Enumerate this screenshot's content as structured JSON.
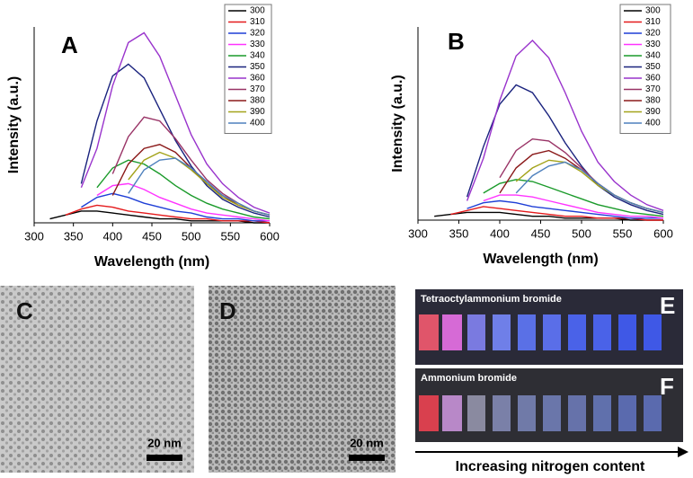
{
  "chart_data": [
    {
      "type": "line",
      "label": "A",
      "xlabel": "Wavelength (nm)",
      "ylabel": "Intensity (a.u.)",
      "x": [
        300,
        320,
        340,
        360,
        380,
        400,
        420,
        440,
        460,
        480,
        500,
        520,
        540,
        560,
        580,
        600
      ],
      "xlim": [
        300,
        600
      ],
      "xticks": [
        300,
        350,
        400,
        450,
        500,
        550,
        600
      ],
      "ylim": [
        0,
        100
      ],
      "series": [
        {
          "name": "300",
          "color": "#000000",
          "values": [
            null,
            2,
            4,
            6,
            6,
            5,
            4,
            3,
            2,
            2,
            1,
            1,
            1,
            1,
            0,
            0
          ]
        },
        {
          "name": "310",
          "color": "#e41a1c",
          "values": [
            null,
            null,
            4,
            7,
            9,
            8,
            6,
            5,
            4,
            3,
            2,
            2,
            1,
            1,
            1,
            0
          ]
        },
        {
          "name": "320",
          "color": "#1f3fd6",
          "values": [
            null,
            null,
            null,
            8,
            13,
            15,
            13,
            10,
            8,
            6,
            5,
            3,
            2,
            2,
            1,
            1
          ]
        },
        {
          "name": "330",
          "color": "#ff33ff",
          "values": [
            null,
            null,
            null,
            null,
            14,
            19,
            20,
            17,
            13,
            10,
            7,
            5,
            4,
            3,
            2,
            1
          ]
        },
        {
          "name": "340",
          "color": "#1a9a2a",
          "values": [
            null,
            null,
            null,
            null,
            18,
            28,
            32,
            30,
            25,
            19,
            14,
            10,
            7,
            5,
            3,
            2
          ]
        },
        {
          "name": "350",
          "color": "#1a237e",
          "values": [
            null,
            null,
            null,
            20,
            52,
            75,
            81,
            74,
            58,
            42,
            29,
            19,
            12,
            8,
            5,
            3
          ]
        },
        {
          "name": "360",
          "color": "#9933cc",
          "values": [
            null,
            null,
            null,
            18,
            38,
            70,
            92,
            97,
            85,
            65,
            45,
            30,
            20,
            13,
            8,
            5
          ]
        },
        {
          "name": "370",
          "color": "#993366",
          "values": [
            null,
            null,
            null,
            null,
            null,
            25,
            44,
            54,
            52,
            43,
            32,
            22,
            15,
            10,
            6,
            4
          ]
        },
        {
          "name": "380",
          "color": "#8b1a1a",
          "values": [
            null,
            null,
            null,
            null,
            null,
            14,
            30,
            38,
            40,
            36,
            28,
            20,
            14,
            9,
            6,
            4
          ]
        },
        {
          "name": "390",
          "color": "#a3a31a",
          "values": [
            null,
            null,
            null,
            null,
            null,
            null,
            22,
            32,
            36,
            33,
            27,
            20,
            13,
            9,
            6,
            4
          ]
        },
        {
          "name": "400",
          "color": "#4f81bd",
          "values": [
            null,
            null,
            null,
            null,
            null,
            null,
            15,
            27,
            32,
            33,
            28,
            21,
            14,
            10,
            6,
            4
          ]
        }
      ]
    },
    {
      "type": "line",
      "label": "B",
      "xlabel": "Wavelength (nm)",
      "ylabel": "Intensity (a.u.)",
      "x": [
        300,
        320,
        340,
        360,
        380,
        400,
        420,
        440,
        460,
        480,
        500,
        520,
        540,
        560,
        580,
        600
      ],
      "xlim": [
        300,
        600
      ],
      "xticks": [
        300,
        350,
        400,
        450,
        500,
        550,
        600
      ],
      "ylim": [
        0,
        100
      ],
      "series": [
        {
          "name": "300",
          "color": "#000000",
          "values": [
            null,
            2,
            3,
            4,
            4,
            4,
            3,
            2,
            2,
            1,
            1,
            1,
            1,
            0,
            0,
            0
          ]
        },
        {
          "name": "310",
          "color": "#e41a1c",
          "values": [
            null,
            null,
            3,
            5,
            7,
            6,
            5,
            4,
            3,
            2,
            2,
            1,
            1,
            1,
            0,
            0
          ]
        },
        {
          "name": "320",
          "color": "#1f3fd6",
          "values": [
            null,
            null,
            null,
            6,
            9,
            10,
            9,
            7,
            6,
            5,
            4,
            3,
            2,
            1,
            1,
            1
          ]
        },
        {
          "name": "330",
          "color": "#ff33ff",
          "values": [
            null,
            null,
            null,
            null,
            10,
            13,
            13,
            12,
            10,
            8,
            6,
            4,
            3,
            2,
            2,
            1
          ]
        },
        {
          "name": "340",
          "color": "#1a9a2a",
          "values": [
            null,
            null,
            null,
            null,
            14,
            19,
            21,
            20,
            17,
            14,
            11,
            8,
            6,
            4,
            3,
            2
          ]
        },
        {
          "name": "350",
          "color": "#1a237e",
          "values": [
            null,
            null,
            null,
            12,
            38,
            60,
            70,
            66,
            54,
            40,
            28,
            18,
            12,
            8,
            5,
            3
          ]
        },
        {
          "name": "360",
          "color": "#9933cc",
          "values": [
            null,
            null,
            null,
            10,
            32,
            62,
            85,
            93,
            84,
            66,
            46,
            30,
            20,
            13,
            8,
            5
          ]
        },
        {
          "name": "370",
          "color": "#993366",
          "values": [
            null,
            null,
            null,
            null,
            null,
            22,
            36,
            42,
            41,
            35,
            27,
            19,
            13,
            9,
            6,
            4
          ]
        },
        {
          "name": "380",
          "color": "#8b1a1a",
          "values": [
            null,
            null,
            null,
            null,
            null,
            14,
            27,
            34,
            36,
            32,
            26,
            19,
            13,
            9,
            6,
            4
          ]
        },
        {
          "name": "390",
          "color": "#a3a31a",
          "values": [
            null,
            null,
            null,
            null,
            null,
            null,
            20,
            27,
            31,
            30,
            25,
            18,
            13,
            9,
            6,
            4
          ]
        },
        {
          "name": "400",
          "color": "#4f81bd",
          "values": [
            null,
            null,
            null,
            null,
            null,
            null,
            14,
            23,
            28,
            30,
            26,
            19,
            13,
            9,
            6,
            4
          ]
        }
      ]
    }
  ],
  "panels": {
    "c": {
      "label": "C",
      "scale": "20 nm"
    },
    "d": {
      "label": "D",
      "scale": "20 nm"
    },
    "e": {
      "label": "E",
      "caption": "Tetraoctylammonium bromide"
    },
    "f": {
      "label": "F",
      "caption": "Ammonium bromide"
    },
    "arrow": "Increasing nitrogen content"
  }
}
